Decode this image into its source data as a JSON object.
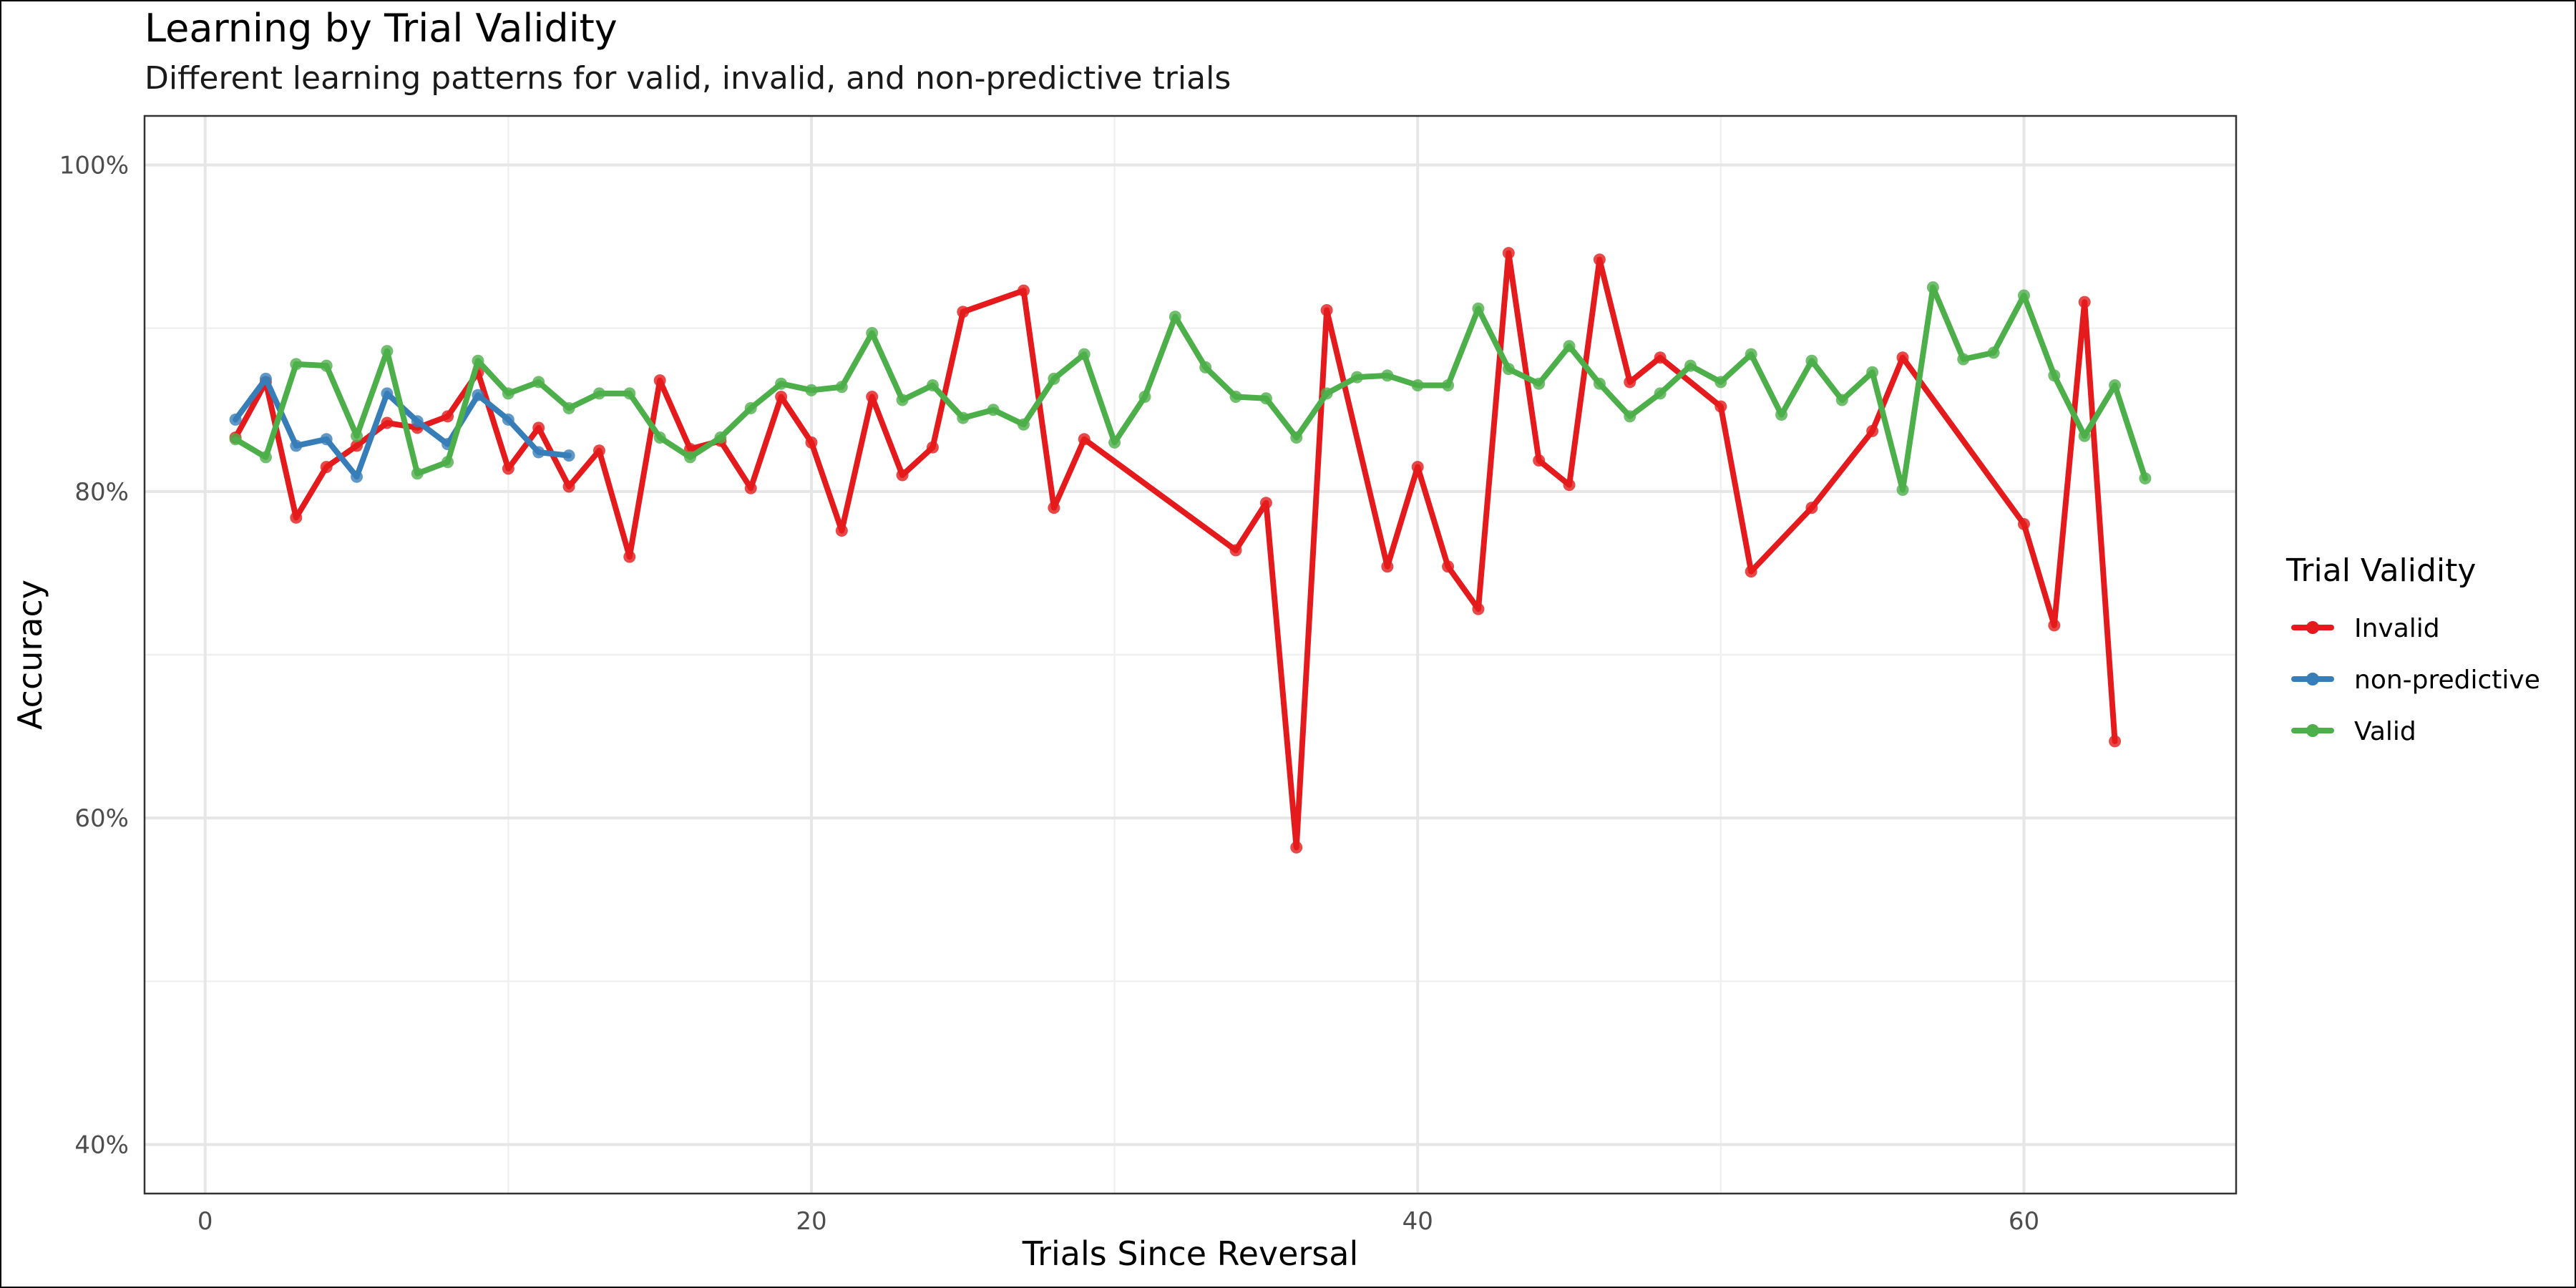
{
  "chart_data": {
    "type": "line",
    "title": "Learning by Trial Validity",
    "subtitle": "Different learning patterns for valid, invalid, and non-predictive trials",
    "xlabel": "Trials Since Reversal",
    "ylabel": "Accuracy",
    "xlim": [
      -2,
      67
    ],
    "ylim": [
      0.37,
      1.03
    ],
    "x_ticks": [
      0,
      20,
      40,
      60
    ],
    "x_tick_labels": [
      "0",
      "20",
      "40",
      "60"
    ],
    "y_ticks": [
      0.4,
      0.6,
      0.8,
      1.0
    ],
    "y_tick_labels": [
      "40%",
      "60%",
      "80%",
      "100%"
    ],
    "x_minor": [
      10,
      30,
      50
    ],
    "y_minor": [
      0.5,
      0.7,
      0.9
    ],
    "grid": true,
    "legend_title": "Trial Validity",
    "legend_position": "right",
    "series": [
      {
        "name": "Invalid",
        "color": "#E41A1C",
        "points": [
          [
            1,
            0.833
          ],
          [
            2,
            0.867
          ],
          [
            3,
            0.784
          ],
          [
            4,
            0.815
          ],
          [
            5,
            0.828
          ],
          [
            6,
            0.842
          ],
          [
            7,
            0.839
          ],
          [
            8,
            0.846
          ],
          [
            9,
            0.873
          ],
          [
            10,
            0.814
          ],
          [
            11,
            0.839
          ],
          [
            12,
            0.803
          ],
          [
            13,
            0.825
          ],
          [
            14,
            0.76
          ],
          [
            15,
            0.868
          ],
          [
            16,
            0.826
          ],
          [
            17,
            0.831
          ],
          [
            18,
            0.802
          ],
          [
            19,
            0.858
          ],
          [
            20,
            0.83
          ],
          [
            21,
            0.776
          ],
          [
            22,
            0.858
          ],
          [
            23,
            0.81
          ],
          [
            24,
            0.827
          ],
          [
            25,
            0.91
          ],
          [
            27,
            0.923
          ],
          [
            28,
            0.79
          ],
          [
            29,
            0.832
          ],
          [
            34,
            0.764
          ],
          [
            35,
            0.793
          ],
          [
            36,
            0.582
          ],
          [
            37,
            0.911
          ],
          [
            39,
            0.754
          ],
          [
            40,
            0.815
          ],
          [
            41,
            0.754
          ],
          [
            42,
            0.728
          ],
          [
            43,
            0.946
          ],
          [
            44,
            0.819
          ],
          [
            45,
            0.804
          ],
          [
            46,
            0.942
          ],
          [
            47,
            0.867
          ],
          [
            48,
            0.882
          ],
          [
            50,
            0.852
          ],
          [
            51,
            0.751
          ],
          [
            53,
            0.79
          ],
          [
            55,
            0.837
          ],
          [
            56,
            0.882
          ],
          [
            60,
            0.78
          ],
          [
            61,
            0.718
          ],
          [
            62,
            0.916
          ],
          [
            63,
            0.647
          ]
        ]
      },
      {
        "name": "non-predictive",
        "color": "#377EB8",
        "points": [
          [
            1,
            0.844
          ],
          [
            2,
            0.869
          ],
          [
            3,
            0.828
          ],
          [
            4,
            0.832
          ],
          [
            5,
            0.809
          ],
          [
            6,
            0.86
          ],
          [
            7,
            0.843
          ],
          [
            8,
            0.829
          ],
          [
            9,
            0.859
          ],
          [
            10,
            0.844
          ],
          [
            11,
            0.824
          ],
          [
            12,
            0.822
          ]
        ]
      },
      {
        "name": "Valid",
        "color": "#4DAF4A",
        "points": [
          [
            1,
            0.832
          ],
          [
            2,
            0.821
          ],
          [
            3,
            0.878
          ],
          [
            4,
            0.877
          ],
          [
            5,
            0.834
          ],
          [
            6,
            0.886
          ],
          [
            7,
            0.811
          ],
          [
            8,
            0.818
          ],
          [
            9,
            0.88
          ],
          [
            10,
            0.86
          ],
          [
            11,
            0.867
          ],
          [
            12,
            0.851
          ],
          [
            13,
            0.86
          ],
          [
            14,
            0.86
          ],
          [
            15,
            0.833
          ],
          [
            16,
            0.821
          ],
          [
            17,
            0.833
          ],
          [
            18,
            0.851
          ],
          [
            19,
            0.866
          ],
          [
            20,
            0.862
          ],
          [
            21,
            0.864
          ],
          [
            22,
            0.897
          ],
          [
            23,
            0.856
          ],
          [
            24,
            0.865
          ],
          [
            25,
            0.845
          ],
          [
            26,
            0.85
          ],
          [
            27,
            0.841
          ],
          [
            28,
            0.869
          ],
          [
            29,
            0.884
          ],
          [
            30,
            0.83
          ],
          [
            31,
            0.858
          ],
          [
            32,
            0.907
          ],
          [
            33,
            0.876
          ],
          [
            34,
            0.858
          ],
          [
            35,
            0.857
          ],
          [
            36,
            0.833
          ],
          [
            37,
            0.86
          ],
          [
            38,
            0.87
          ],
          [
            39,
            0.871
          ],
          [
            40,
            0.865
          ],
          [
            41,
            0.865
          ],
          [
            42,
            0.912
          ],
          [
            43,
            0.875
          ],
          [
            44,
            0.866
          ],
          [
            45,
            0.889
          ],
          [
            46,
            0.866
          ],
          [
            47,
            0.846
          ],
          [
            48,
            0.86
          ],
          [
            49,
            0.877
          ],
          [
            50,
            0.867
          ],
          [
            51,
            0.884
          ],
          [
            52,
            0.847
          ],
          [
            53,
            0.88
          ],
          [
            54,
            0.856
          ],
          [
            55,
            0.873
          ],
          [
            56,
            0.801
          ],
          [
            57,
            0.925
          ],
          [
            58,
            0.881
          ],
          [
            59,
            0.885
          ],
          [
            60,
            0.92
          ],
          [
            61,
            0.871
          ],
          [
            62,
            0.834
          ],
          [
            63,
            0.865
          ],
          [
            64,
            0.808
          ]
        ]
      }
    ]
  }
}
